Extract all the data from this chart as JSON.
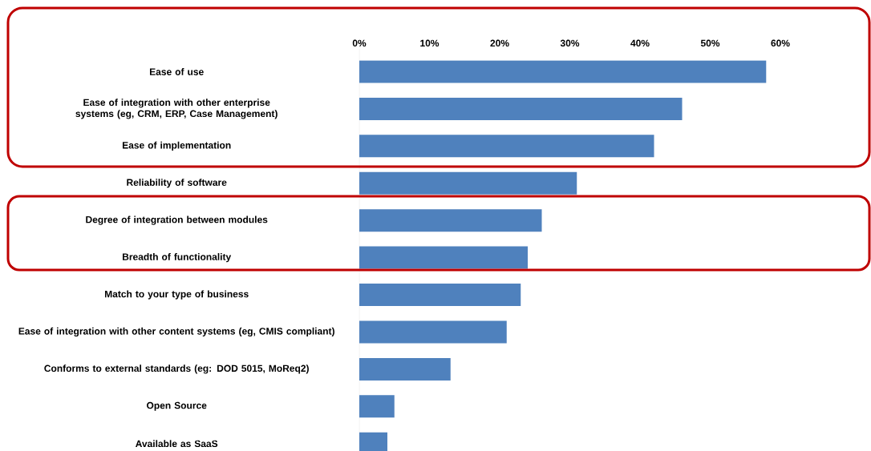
{
  "chart_data": {
    "type": "bar",
    "orientation": "horizontal",
    "categories": [
      "Ease of use",
      "Ease of integration with other enterprise systems (eg, CRM, ERP, Case Management)",
      "Ease of implementation",
      "Reliability of software",
      "Degree of integration between modules",
      "Breadth of functionality",
      "Match to your type of business",
      "Ease of integration with other content systems (eg, CMIS compliant)",
      "Conforms to external standards (eg: DOD 5015, MoReq2)",
      "Open Source",
      "Available as SaaS"
    ],
    "values": [
      58,
      46,
      42,
      31,
      26,
      24,
      23,
      21,
      13,
      5,
      4
    ],
    "color": "#4f81bd",
    "xlim": [
      0,
      60
    ],
    "xticks": [
      {
        "value": 0,
        "label": "0%"
      },
      {
        "value": 10,
        "label": "10%"
      },
      {
        "value": 20,
        "label": "20%"
      },
      {
        "value": 30,
        "label": "30%"
      },
      {
        "value": 40,
        "label": "40%"
      },
      {
        "value": 50,
        "label": "50%"
      },
      {
        "value": 60,
        "label": "60%"
      }
    ],
    "grid": false
  }
}
